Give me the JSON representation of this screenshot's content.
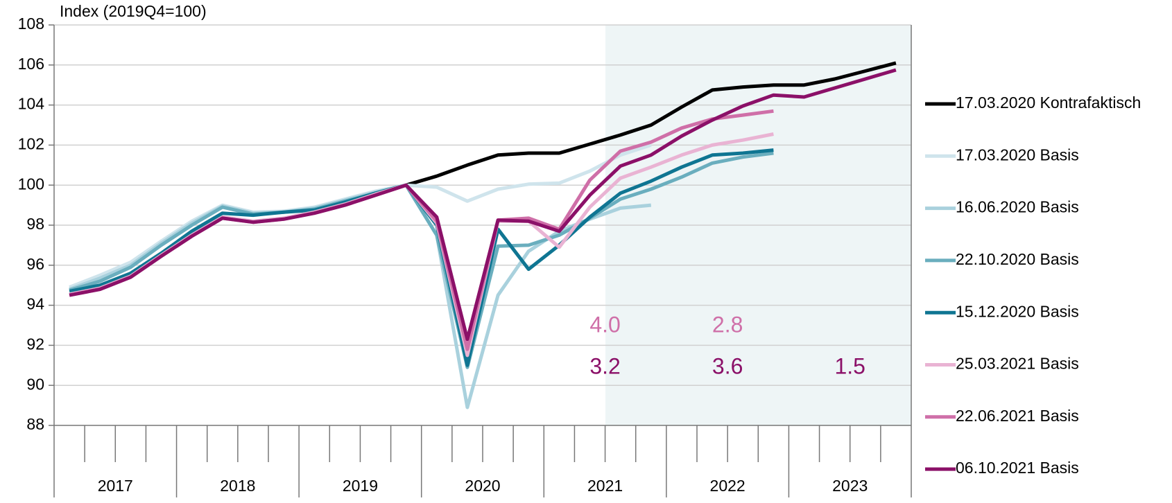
{
  "chart_data": {
    "type": "line",
    "y_label": "Index (2019Q4=100)",
    "categories": [
      null,
      null,
      null,
      null,
      null,
      null,
      null,
      null,
      null,
      null,
      null,
      null,
      null,
      null,
      null,
      null,
      null,
      null,
      null,
      null,
      null,
      null,
      null,
      null,
      null,
      null,
      null,
      null
    ],
    "groups": [
      "2017",
      "2018",
      "2019",
      "2020",
      "2021",
      "2022",
      "2023"
    ],
    "ylim": [
      88,
      108
    ],
    "yticks": [
      88,
      90,
      92,
      94,
      96,
      98,
      100,
      102,
      104,
      106,
      108
    ],
    "grid": true,
    "series": [
      {
        "name": "17.03.2020 Kontrafaktisch",
        "color": "#000000",
        "values": [
          null,
          null,
          null,
          null,
          null,
          null,
          null,
          null,
          null,
          null,
          null,
          100,
          100.45,
          101.0,
          101.5,
          101.6,
          101.6,
          102.05,
          102.5,
          103.0,
          103.9,
          104.75,
          104.9,
          105.0,
          105.0,
          105.3,
          105.7,
          106.1
        ]
      },
      {
        "name": "17.03.2020 Basis",
        "color": "#cfe4ec",
        "values": [
          94.9,
          95.5,
          96.15,
          97.2,
          98.2,
          99.0,
          98.65,
          98.7,
          98.9,
          99.3,
          99.7,
          100,
          99.9,
          99.2,
          99.8,
          100.05,
          100.1,
          100.7,
          101.5,
          102.0,
          null,
          null,
          null,
          null,
          null,
          null,
          null,
          null
        ]
      },
      {
        "name": "16.06.2020 Basis",
        "color": "#a9d1dd",
        "values": [
          94.8,
          95.35,
          96.0,
          97.1,
          98.1,
          98.95,
          98.6,
          98.65,
          98.85,
          99.25,
          99.65,
          100,
          97.5,
          88.9,
          94.5,
          96.7,
          97.7,
          98.3,
          98.85,
          99.0,
          null,
          null,
          null,
          null,
          null,
          null,
          null,
          null
        ]
      },
      {
        "name": "22.10.2020 Basis",
        "color": "#6aaebe",
        "values": [
          94.75,
          95.2,
          95.9,
          97.0,
          98.0,
          98.9,
          98.55,
          98.65,
          98.8,
          99.2,
          99.6,
          100,
          97.5,
          90.9,
          96.95,
          97.0,
          97.5,
          98.35,
          99.3,
          99.8,
          100.4,
          101.1,
          101.4,
          101.6,
          null,
          null,
          null,
          null
        ]
      },
      {
        "name": "15.12.2020 Basis",
        "color": "#0f7592",
        "values": [
          94.7,
          95.0,
          95.6,
          96.6,
          97.7,
          98.6,
          98.5,
          98.65,
          98.75,
          99.15,
          99.6,
          100,
          98.0,
          91.0,
          97.8,
          95.8,
          97.0,
          98.4,
          99.6,
          100.2,
          100.9,
          101.5,
          101.6,
          101.75,
          null,
          null,
          null,
          null
        ]
      },
      {
        "name": "25.03.2021 Basis",
        "color": "#e9b3d3",
        "values": [
          94.55,
          94.85,
          95.45,
          96.5,
          97.5,
          98.4,
          98.2,
          98.35,
          98.65,
          99.05,
          99.55,
          100,
          98.1,
          91.5,
          98.2,
          98.2,
          96.9,
          98.9,
          100.35,
          100.9,
          101.5,
          102.0,
          102.25,
          102.55,
          null,
          null,
          null,
          null
        ]
      },
      {
        "name": "22.06.2021 Basis",
        "color": "#cf6fa8",
        "values": [
          94.5,
          94.8,
          95.4,
          96.45,
          97.45,
          98.35,
          98.15,
          98.3,
          98.6,
          99.0,
          99.5,
          100,
          98.2,
          91.8,
          98.25,
          98.35,
          97.8,
          100.25,
          101.7,
          102.15,
          102.85,
          103.3,
          103.5,
          103.7,
          null,
          null,
          null,
          null
        ]
      },
      {
        "name": "06.10.2021 Basis",
        "color": "#8b1068",
        "values": [
          94.5,
          94.8,
          95.4,
          96.45,
          97.45,
          98.35,
          98.15,
          98.3,
          98.6,
          99.0,
          99.5,
          100,
          98.4,
          92.3,
          98.25,
          98.2,
          97.7,
          99.5,
          100.95,
          101.5,
          102.45,
          103.25,
          103.95,
          104.5,
          104.4,
          104.85,
          105.3,
          105.75
        ]
      }
    ],
    "annotations": [
      {
        "color": "#cf6fa8",
        "texts": [
          "4.0",
          "2.8"
        ]
      },
      {
        "color": "#8b1068",
        "texts": [
          "3.2",
          "3.6",
          "1.5"
        ]
      }
    ]
  }
}
